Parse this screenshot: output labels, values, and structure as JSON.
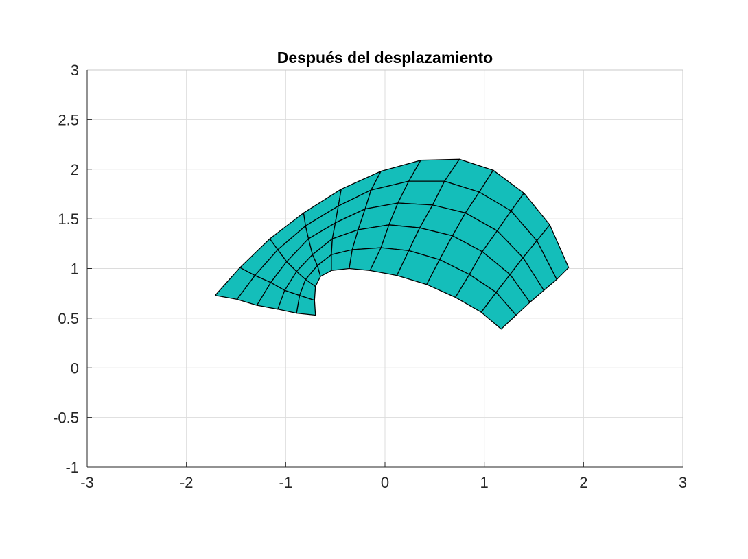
{
  "chart_data": {
    "type": "mesh",
    "title": "Después del desplazamiento",
    "xlabel": "",
    "ylabel": "",
    "xlim": [
      -3,
      3
    ],
    "ylim": [
      -1,
      3
    ],
    "xticks": [
      "-3",
      "-2",
      "-1",
      "0",
      "1",
      "2",
      "3"
    ],
    "yticks": [
      "-1",
      "-0.5",
      "0",
      "0.5",
      "1",
      "1.5",
      "2",
      "2.5",
      "3"
    ],
    "grid": true,
    "face_color": "#14BEBA",
    "edge_color": "#000000",
    "grid_color": "#DCDCDC",
    "mesh_columns": [
      [
        [
          -1.71,
          0.73
        ],
        [
          -1.49,
          0.69
        ],
        [
          -1.29,
          0.63
        ],
        [
          -1.08,
          0.59
        ],
        [
          -0.89,
          0.55
        ],
        [
          -0.7,
          0.53
        ]
      ],
      [
        [
          -1.46,
          1.01
        ],
        [
          -1.31,
          0.93
        ],
        [
          -1.15,
          0.86
        ],
        [
          -1.01,
          0.78
        ],
        [
          -0.86,
          0.73
        ],
        [
          -0.71,
          0.68
        ]
      ],
      [
        [
          -1.16,
          1.3
        ],
        [
          -1.08,
          1.19
        ],
        [
          -0.99,
          1.07
        ],
        [
          -0.89,
          0.97
        ],
        [
          -0.8,
          0.89
        ],
        [
          -0.7,
          0.82
        ]
      ],
      [
        [
          -0.82,
          1.56
        ],
        [
          -0.8,
          1.43
        ],
        [
          -0.77,
          1.3
        ],
        [
          -0.73,
          1.14
        ],
        [
          -0.68,
          1.03
        ],
        [
          -0.65,
          0.92
        ]
      ],
      [
        [
          -0.44,
          1.8
        ],
        [
          -0.47,
          1.63
        ],
        [
          -0.5,
          1.46
        ],
        [
          -0.53,
          1.3
        ],
        [
          -0.54,
          1.14
        ],
        [
          -0.54,
          0.98
        ]
      ],
      [
        [
          -0.04,
          1.98
        ],
        [
          -0.14,
          1.79
        ],
        [
          -0.2,
          1.6
        ],
        [
          -0.27,
          1.39
        ],
        [
          -0.33,
          1.19
        ],
        [
          -0.36,
          1.0
        ]
      ],
      [
        [
          0.36,
          2.09
        ],
        [
          0.24,
          1.88
        ],
        [
          0.13,
          1.66
        ],
        [
          0.04,
          1.44
        ],
        [
          -0.04,
          1.21
        ],
        [
          -0.15,
          0.98
        ]
      ],
      [
        [
          0.75,
          2.1
        ],
        [
          0.6,
          1.88
        ],
        [
          0.48,
          1.64
        ],
        [
          0.35,
          1.41
        ],
        [
          0.24,
          1.18
        ],
        [
          0.12,
          0.93
        ]
      ],
      [
        [
          1.09,
          1.99
        ],
        [
          0.95,
          1.77
        ],
        [
          0.81,
          1.56
        ],
        [
          0.68,
          1.33
        ],
        [
          0.55,
          1.09
        ],
        [
          0.42,
          0.84
        ]
      ],
      [
        [
          1.4,
          1.76
        ],
        [
          1.27,
          1.58
        ],
        [
          1.13,
          1.38
        ],
        [
          0.98,
          1.17
        ],
        [
          0.85,
          0.94
        ],
        [
          0.71,
          0.71
        ]
      ],
      [
        [
          1.66,
          1.44
        ],
        [
          1.53,
          1.28
        ],
        [
          1.39,
          1.11
        ],
        [
          1.26,
          0.94
        ],
        [
          1.12,
          0.76
        ],
        [
          0.97,
          0.56
        ]
      ],
      [
        [
          1.85,
          1.01
        ],
        [
          1.73,
          0.89
        ],
        [
          1.6,
          0.78
        ],
        [
          1.46,
          0.66
        ],
        [
          1.32,
          0.53
        ],
        [
          1.17,
          0.39
        ]
      ]
    ]
  }
}
